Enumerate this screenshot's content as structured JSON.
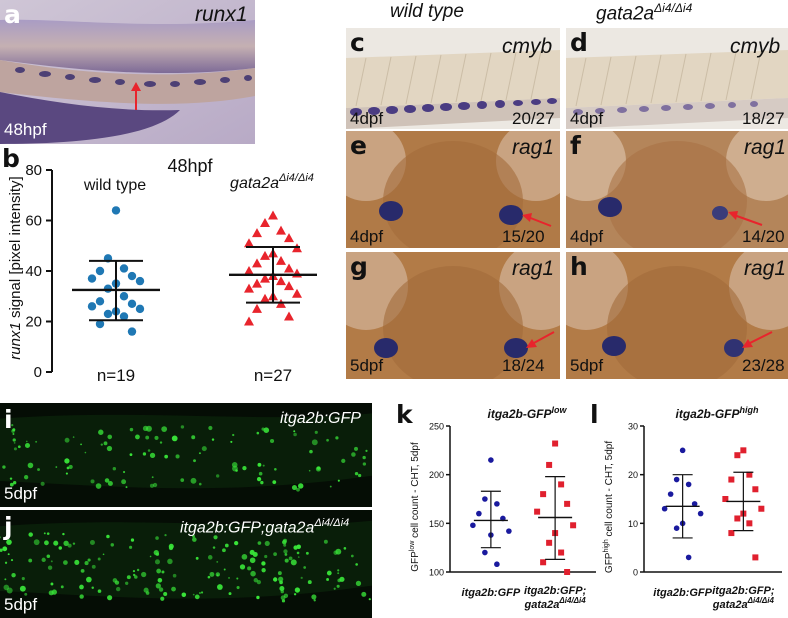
{
  "panels": {
    "a": {
      "letter": "a",
      "gene": "runx1",
      "stage": "48hpf"
    },
    "b": {
      "letter": "b"
    },
    "c": {
      "letter": "c",
      "gene": "cmyb",
      "stage": "4dpf",
      "ratio": "20/27"
    },
    "d": {
      "letter": "d",
      "gene": "cmyb",
      "ratio": "18/27"
    },
    "e": {
      "letter": "e",
      "gene": "rag1",
      "stage": "4dpf",
      "ratio": "15/20"
    },
    "f": {
      "letter": "f",
      "gene": "rag1",
      "stage": "4dpf",
      "ratio": "14/20"
    },
    "g": {
      "letter": "g",
      "gene": "rag1",
      "stage": "5dpf",
      "ratio": "18/24"
    },
    "h": {
      "letter": "h",
      "gene": "rag1",
      "stage": "5dpf",
      "ratio": "23/28"
    },
    "i": {
      "letter": "i",
      "label": "itga2b:GFP",
      "stage": "5dpf"
    },
    "j": {
      "letter": "j",
      "label_main": "itga2b:GFP;gata2a",
      "label_sup": "Δi4/Δi4",
      "stage": "5dpf"
    },
    "k": {
      "letter": "k"
    },
    "l": {
      "letter": "l"
    }
  },
  "column_headers": {
    "left": "wild type",
    "right_main": "gata2a",
    "right_sup": "Δi4/Δi4"
  },
  "colors": {
    "wildtype_b": "#1f78b4",
    "mutant_b": "#e8242c",
    "wildtype_kl": "#1a1a9e",
    "mutant_kl": "#e0202e",
    "arrow": "#e8242c",
    "gfp": "#39e639"
  },
  "chart_data": [
    {
      "panel": "b",
      "type": "scatter",
      "title": "48hpf",
      "ylabel_gene": "runx1",
      "ylabel": "signal [pixel intensity]",
      "yticks": [
        "0",
        "20",
        "40",
        "60",
        "80"
      ],
      "ylim": [
        0,
        80
      ],
      "categories": [
        {
          "name": "wild type",
          "n_label": "n=19"
        },
        {
          "name": "gata2a",
          "name_sup": "Δi4/Δi4",
          "n_label": "n=27"
        }
      ],
      "series": [
        {
          "name": "wild type",
          "marker": "circle",
          "mean": 32.5,
          "sd_low": 20.5,
          "sd_high": 44.0,
          "values": [
            64,
            45,
            41,
            40,
            38,
            37,
            36,
            35,
            33,
            30,
            28,
            27,
            26,
            25,
            24,
            23,
            22,
            19,
            16
          ]
        },
        {
          "name": "gata2a Δi4/Δi4",
          "marker": "triangle",
          "mean": 38.5,
          "sd_low": 27.5,
          "sd_high": 49.5,
          "values": [
            62,
            59,
            56,
            55,
            53,
            51,
            49,
            47,
            46,
            44,
            43,
            41,
            40,
            39,
            38,
            37,
            36,
            35,
            34,
            33,
            31,
            30,
            29,
            27,
            25,
            22,
            20
          ]
        }
      ]
    },
    {
      "panel": "k",
      "type": "scatter",
      "title_main": "itga2b-GFP",
      "title_sup": "low",
      "ylabel_main": "GFP",
      "ylabel_sup": "low",
      "ylabel_rest": " cell count - CHT, 5dpf",
      "yticks": [
        "100",
        "150",
        "200",
        "250"
      ],
      "ylim": [
        100,
        250
      ],
      "categories": [
        {
          "name": "itga2b:GFP"
        },
        {
          "name": "itga2b:GFP;",
          "name2": "gata2a",
          "name2_sup": "Δi4/Δi4"
        }
      ],
      "series": [
        {
          "name": "itga2b:GFP",
          "marker": "circle",
          "mean": 153,
          "sd_low": 125,
          "sd_high": 183,
          "values": [
            215,
            175,
            170,
            160,
            155,
            148,
            142,
            138,
            120,
            108
          ]
        },
        {
          "name": "itga2b:GFP;gata2a Δi4/Δi4",
          "marker": "square",
          "mean": 156,
          "sd_low": 113,
          "sd_high": 198,
          "values": [
            232,
            210,
            190,
            180,
            170,
            162,
            148,
            140,
            130,
            120,
            110,
            100
          ]
        }
      ]
    },
    {
      "panel": "l",
      "type": "scatter",
      "title_main": "itga2b-GFP",
      "title_sup": "high",
      "ylabel_main": "GFP",
      "ylabel_sup": "high",
      "ylabel_rest": " cell count - CHT, 5dpf",
      "yticks": [
        "0",
        "10",
        "20",
        "30"
      ],
      "ylim": [
        0,
        30
      ],
      "categories": [
        {
          "name": "itga2b:GFP"
        },
        {
          "name": "itga2b:GFP;",
          "name2": "gata2a",
          "name2_sup": "Δi4/Δi4"
        }
      ],
      "series": [
        {
          "name": "itga2b:GFP",
          "marker": "circle",
          "mean": 13.5,
          "sd_low": 7,
          "sd_high": 20,
          "values": [
            25,
            19,
            18,
            16,
            14,
            13,
            12,
            10,
            9,
            3
          ]
        },
        {
          "name": "itga2b:GFP;gata2a Δi4/Δi4",
          "marker": "square",
          "mean": 14.5,
          "sd_low": 8.5,
          "sd_high": 20.5,
          "values": [
            25,
            24,
            20,
            19,
            17,
            15,
            13,
            12,
            11,
            10,
            8,
            3
          ]
        }
      ]
    }
  ]
}
